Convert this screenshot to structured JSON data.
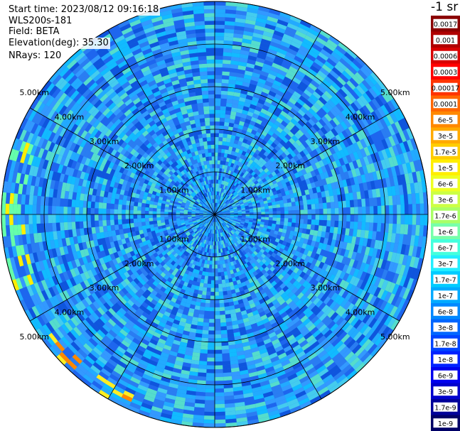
{
  "info": {
    "start_time": "Start time: 2023/08/12 09:16:18",
    "instrument": "WLS200s-181",
    "field": "Field: BETA",
    "elevation": "Elevation(deg): 35.30",
    "nrays": "NRays: 120"
  },
  "colorbar": {
    "unit": "-1 sr",
    "labels": [
      "0.0017",
      "0.001",
      "0.0006",
      "0.0003",
      "0.00017",
      "0.0001",
      "6e-5",
      "3e-5",
      "1.7e-5",
      "1e-5",
      "6e-6",
      "3e-6",
      "1.7e-6",
      "1e-6",
      "6e-7",
      "3e-7",
      "1.7e-7",
      "1e-7",
      "6e-8",
      "3e-8",
      "1.7e-8",
      "1e-8",
      "6e-9",
      "3e-9",
      "1.7e-9",
      "1e-9"
    ],
    "colors": [
      "#8b0000",
      "#b00000",
      "#d80000",
      "#ff0000",
      "#ff3300",
      "#ff6600",
      "#ff8800",
      "#ffaa00",
      "#ffcc00",
      "#ffee00",
      "#eeff22",
      "#ccff44",
      "#aaff66",
      "#77ffaa",
      "#44ffdd",
      "#22eeff",
      "#00ccff",
      "#00aaff",
      "#0088ff",
      "#0066ff",
      "#0044ff",
      "#0022ff",
      "#0000ee",
      "#0000cc",
      "#000099",
      "#000066"
    ]
  },
  "chart_data": {
    "type": "heatmap",
    "projection": "polar",
    "range_rings_km": [
      1.0,
      2.0,
      3.0,
      4.0,
      5.0
    ],
    "ring_labels": [
      "1.00km",
      "2.00km",
      "3.00km",
      "4.00km",
      "5.00km"
    ],
    "spoke_count": 12,
    "max_range_km": 5.0,
    "colorscale": "jet",
    "log_scale": true,
    "vmin": 1e-09,
    "vmax": 0.0017
  }
}
